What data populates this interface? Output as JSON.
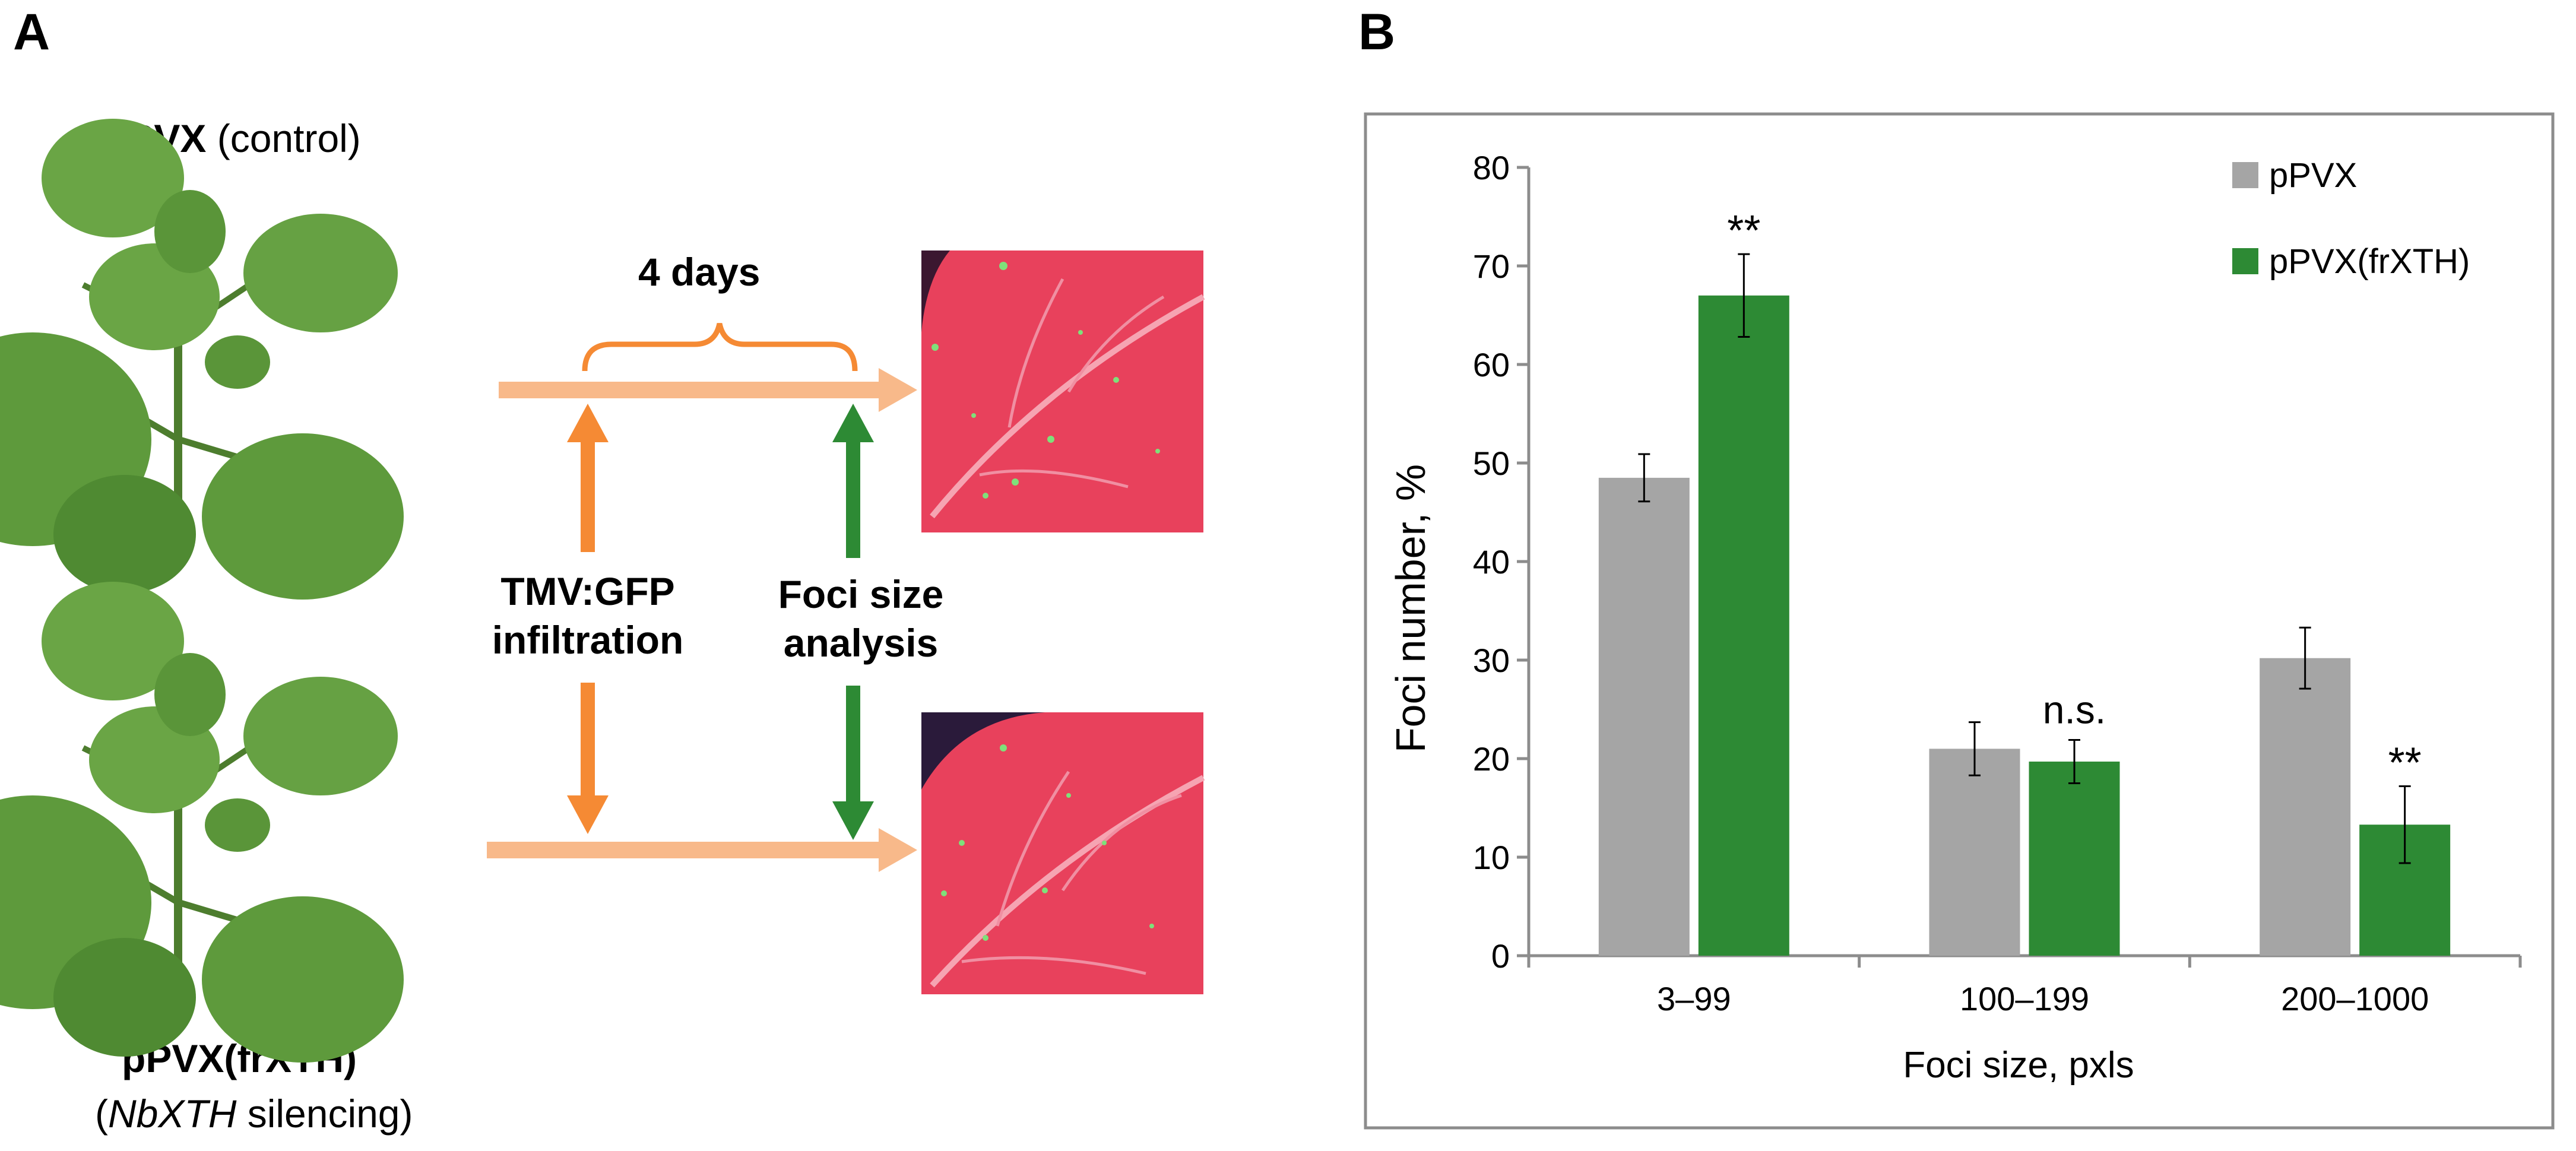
{
  "panel_a": {
    "letter": "A",
    "control": {
      "name": "pPVX",
      "suffix": "(control)"
    },
    "treatment": {
      "name": "pPVX(frXTH)",
      "note_italic": "NbXTH",
      "note_rest": "silencing",
      "open": "(",
      "close": ")"
    },
    "interval": "4 days",
    "step1": [
      "TMV:GFP",
      "infiltration"
    ],
    "step2": [
      "Foci size",
      "analysis"
    ],
    "colors": {
      "orange": "#f58a34",
      "light_orange": "#f8b98a",
      "green": "#2d8a34",
      "leaf": "#5e9a3c",
      "fluor": "#e8415c"
    }
  },
  "panel_b": {
    "letter": "B",
    "chart_data": {
      "type": "bar",
      "xlabel": "Foci size, pxls",
      "ylabel": "Foci number, %",
      "ylim": [
        0,
        80
      ],
      "yticks": [
        0,
        10,
        20,
        30,
        40,
        50,
        60,
        70,
        80
      ],
      "categories": [
        "3–99",
        "100–199",
        "200–1000"
      ],
      "series": [
        {
          "name": "pPVX",
          "color": "#a5a5a5",
          "values": [
            48.5,
            21.0,
            30.2
          ],
          "errors": [
            2.4,
            2.7,
            3.1
          ]
        },
        {
          "name": "pPVX(frXTH)",
          "color": "#2d8a34",
          "values": [
            67.0,
            19.7,
            13.3
          ],
          "errors": [
            4.2,
            2.2,
            3.9
          ]
        }
      ],
      "annotations": [
        "**",
        "n.s.",
        "**"
      ],
      "legend": "top-right"
    }
  }
}
